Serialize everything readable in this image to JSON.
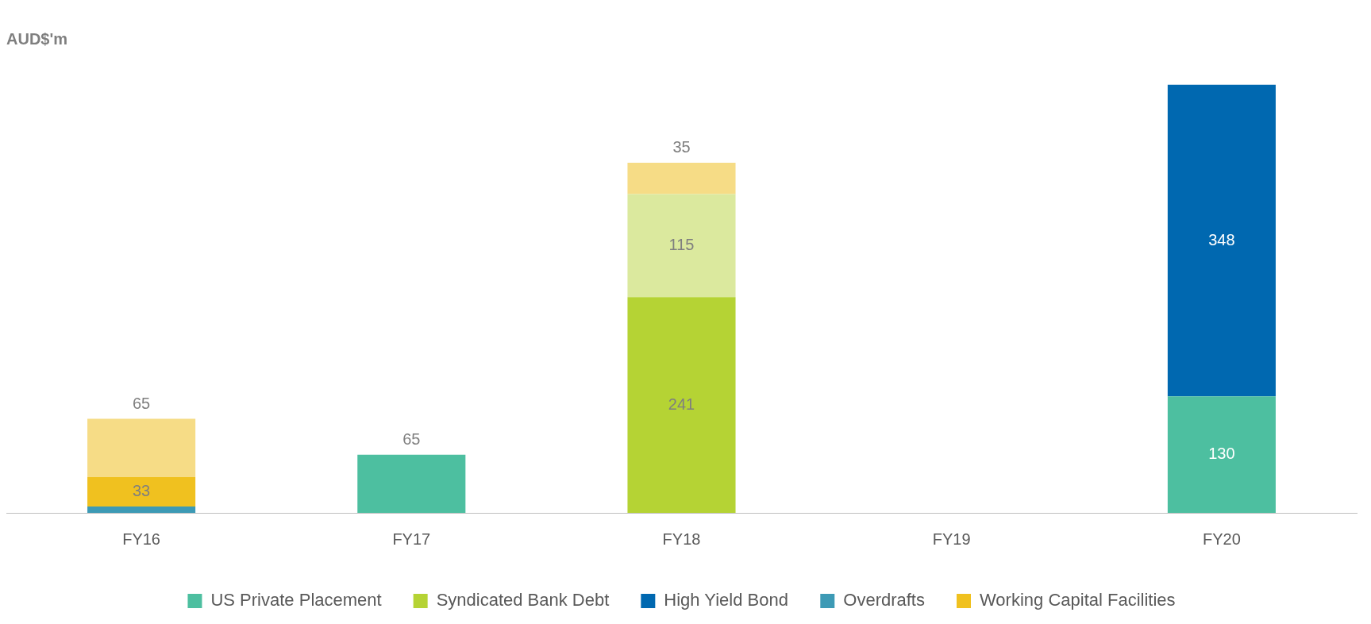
{
  "chart_data": {
    "type": "bar",
    "title": "AUD$'m",
    "stacked": true,
    "legend": "bottom",
    "grid": false,
    "categories": [
      "FY16",
      "FY17",
      "FY18",
      "FY19",
      "FY20"
    ],
    "series": [
      {
        "name": "US Private Placement",
        "color": "#4dbfa0",
        "values": [
          null,
          65,
          null,
          null,
          130
        ],
        "value_labels": [
          null,
          "65",
          null,
          null,
          "130"
        ]
      },
      {
        "name": "Syndicated Bank Debt",
        "color": "#b5d334",
        "values": [
          null,
          null,
          241,
          null,
          null
        ],
        "value_labels": [
          null,
          null,
          "241",
          null,
          null
        ]
      },
      {
        "name": "High Yield Bond",
        "color": "#0068b0",
        "values": [
          null,
          null,
          null,
          null,
          348
        ],
        "value_labels": [
          null,
          null,
          null,
          null,
          "348"
        ]
      },
      {
        "name": "Overdrafts",
        "color": "#3d9ab5",
        "values": [
          7,
          null,
          null,
          null,
          null
        ],
        "value_labels": [
          null,
          null,
          null,
          null,
          null
        ]
      },
      {
        "name": "Working Capital Facilities",
        "color": "#f0c11f",
        "values": [
          33,
          null,
          null,
          null,
          null
        ],
        "value_labels": [
          "33",
          null,
          null,
          null,
          null
        ]
      },
      {
        "color": "#dbe99e",
        "values": [
          null,
          null,
          115,
          null,
          null
        ],
        "value_labels": [
          null,
          null,
          "115",
          null,
          null
        ]
      },
      {
        "color": "#f6dc86",
        "values": [
          65,
          null,
          35,
          null,
          null
        ],
        "value_labels": [
          "65",
          null,
          "35",
          null,
          null
        ]
      }
    ]
  }
}
